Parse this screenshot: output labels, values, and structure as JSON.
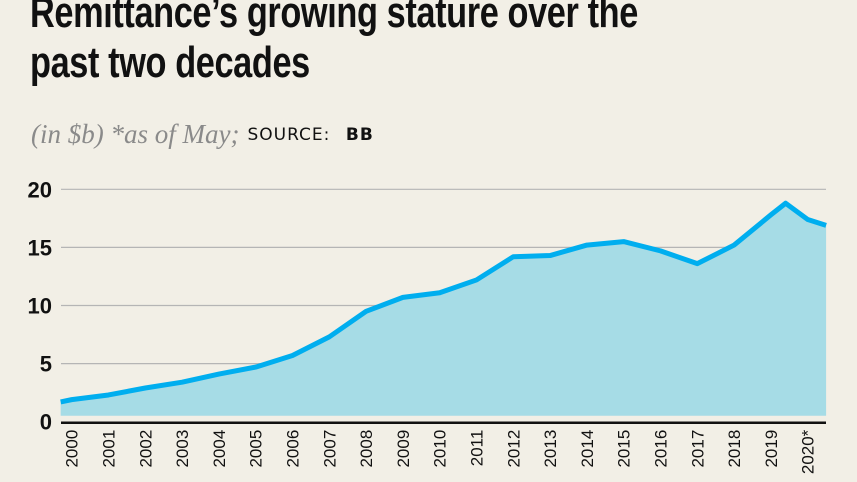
{
  "title": "Remittance’s growing stature over the past two decades",
  "title_lines": [
    "Remittance’s growing stature over the",
    "past two decades"
  ],
  "subtitle": {
    "unit": "(in $b) *as of May;",
    "source_label": "SOURCE:",
    "source": "BB"
  },
  "colors": {
    "background": "#f2efe6",
    "area_fill": "#a6dce6",
    "line": "#00aeef",
    "grid": "#b5b5b5",
    "axis": "#111111"
  },
  "chart_data": {
    "type": "area",
    "title": "Remittance’s growing stature over the past two decades",
    "ylabel": "",
    "xlabel": "",
    "ylim": [
      0,
      20
    ],
    "yticks": [
      0,
      5,
      10,
      15,
      20
    ],
    "grid": true,
    "legend": "none",
    "xtick_labels": [
      "2000",
      "2001",
      "2002",
      "2003",
      "2004",
      "2005",
      "2006",
      "2007",
      "2008",
      "2009",
      "2010",
      "2011",
      "2012",
      "2013",
      "2014",
      "2015",
      "2016",
      "2017",
      "2018",
      "2019",
      "2020*"
    ],
    "series": [
      {
        "x": [
          1999.7,
          2000,
          2001,
          2002,
          2003,
          2004,
          2005,
          2006,
          2007,
          2008,
          2009,
          2010,
          2011,
          2012,
          2013,
          2014,
          2015,
          2016,
          2017,
          2018,
          2019,
          2019.4,
          2020,
          2020.5
        ],
        "values": [
          1.7,
          1.9,
          2.3,
          2.9,
          3.4,
          4.1,
          4.7,
          5.7,
          7.3,
          9.5,
          10.7,
          11.1,
          12.2,
          14.2,
          14.3,
          15.2,
          15.5,
          14.7,
          13.6,
          15.2,
          17.8,
          18.8,
          17.4,
          16.9
        ]
      }
    ]
  }
}
